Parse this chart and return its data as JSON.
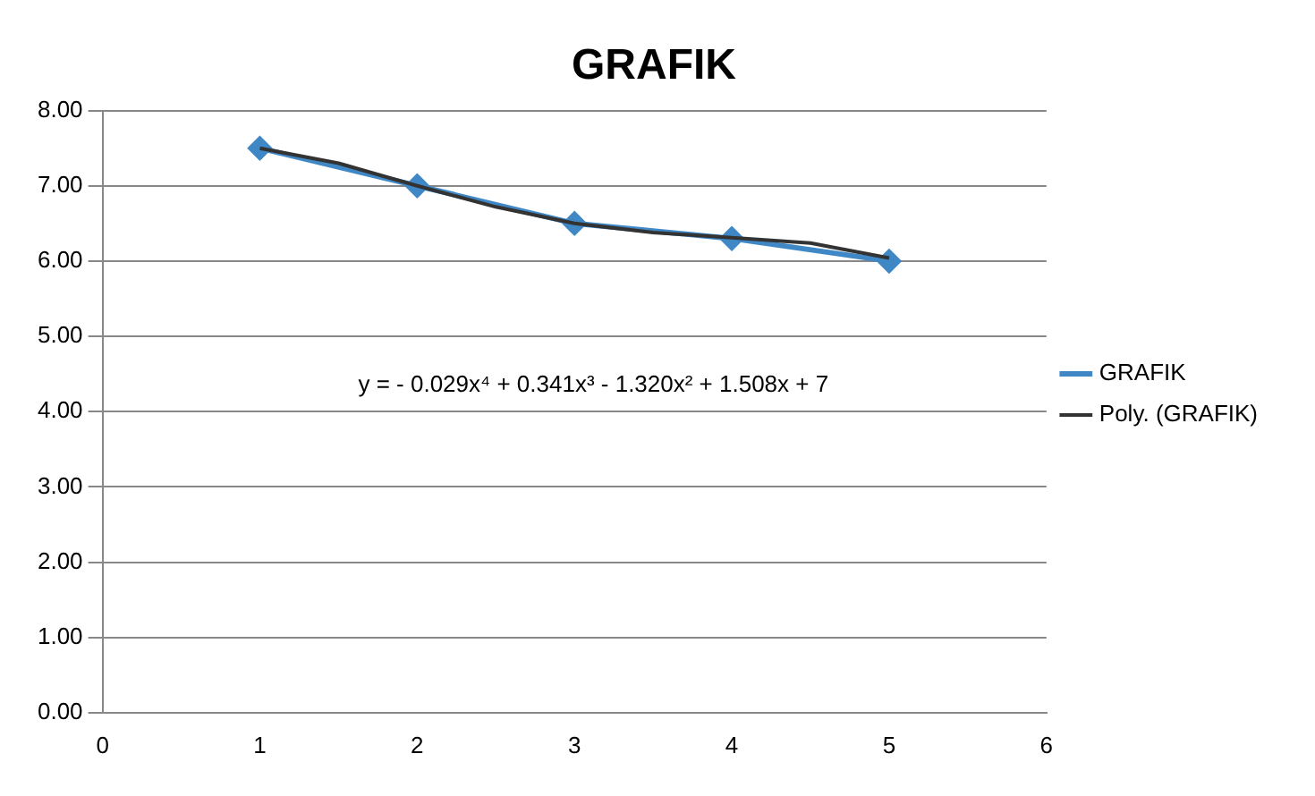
{
  "chart_data": {
    "type": "line",
    "title": "GRAFIK",
    "series": [
      {
        "name": "GRAFIK",
        "color": "#3f88c5",
        "x": [
          1,
          2,
          3,
          4,
          5
        ],
        "values": [
          7.5,
          7.0,
          6.5,
          6.3,
          6.0
        ],
        "marker": "diamond"
      },
      {
        "name": "Poly. (GRAFIK)",
        "color": "#333333",
        "x": [
          1,
          1.5,
          2,
          2.5,
          3,
          3.5,
          4,
          4.5,
          5
        ],
        "values": [
          7.5,
          7.3,
          7.0,
          6.72,
          6.5,
          6.38,
          6.31,
          6.24,
          6.04
        ],
        "marker": "none"
      }
    ],
    "xlim": [
      0,
      6
    ],
    "xticks": [
      0,
      1,
      2,
      3,
      4,
      5,
      6
    ],
    "ylim": [
      0,
      8
    ],
    "yticks": [
      {
        "value": 0,
        "label": "0.00"
      },
      {
        "value": 1,
        "label": "1.00"
      },
      {
        "value": 2,
        "label": "2.00"
      },
      {
        "value": 3,
        "label": "3.00"
      },
      {
        "value": 4,
        "label": "4.00"
      },
      {
        "value": 5,
        "label": "5.00"
      },
      {
        "value": 6,
        "label": "6.00"
      },
      {
        "value": 7,
        "label": "7.00"
      },
      {
        "value": 8,
        "label": "8.00"
      }
    ],
    "grid": "y",
    "legend": "right",
    "annotations": [
      "y = - 0.029x⁴ + 0.341x³ - 1.320x² + 1.508x + 7"
    ]
  }
}
